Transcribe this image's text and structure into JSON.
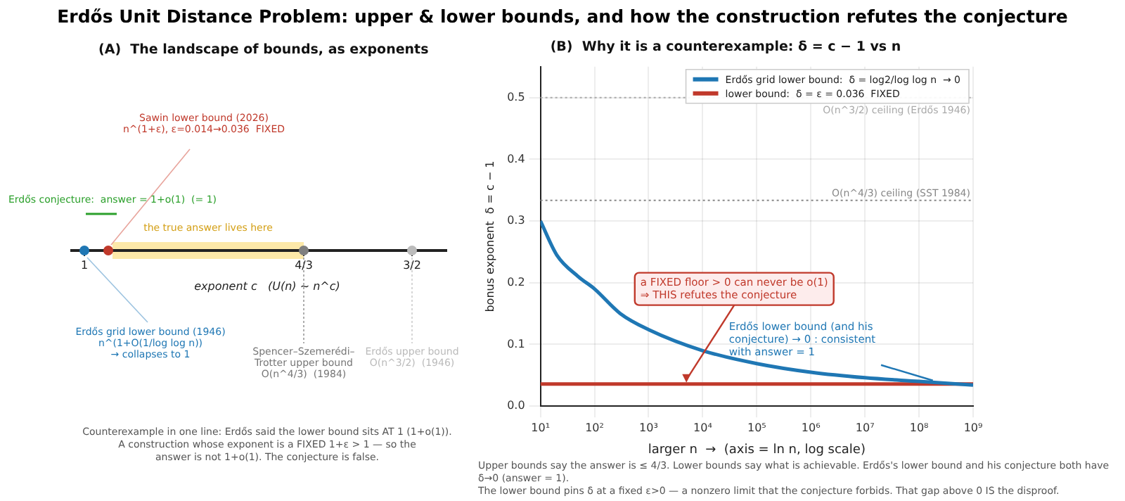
{
  "chart_data": [
    {
      "type": "other",
      "title": "Erdős Unit Distance Problem: upper & lower bounds, and how the construction refutes the conjecture",
      "subtitle": "(A)  The landscape of bounds, as exponents",
      "xlabel": "exponent c   (U(n) ~ n^c)",
      "annotations": [
        "Sawin lower bound (2026)\nn^(1+ε), ε=0.014→0.036  FIXED",
        "Erdős conjecture:  answer = 1+o(1)  (= 1)",
        "Erdős grid lower bound (1946)\nn^(1+O(1/log log n))\n→ collapses to 1",
        "Spencer–Szemerédi–\nTrotter upper bound\nO(n^4/3)  (1984)",
        "Erdős upper bound\nO(n^3/2)  (1946)",
        "the true answer lives here",
        "1",
        "4/3",
        "3/2",
        "Counterexample in one line: Erdős said the lower bound sits AT 1 (1+o(1)).\nA construction whose exponent is a FIXED 1+ε > 1 — so the\nanswer is not 1+o(1). The conjecture is false."
      ]
    },
    {
      "type": "line",
      "title": "(B)  Why it is a counterexample: δ = c − 1 vs n",
      "xlabel": "larger n  →  (axis = ln n, log scale)",
      "ylabel": "bonus exponent  δ = c − 1",
      "log": "x",
      "xlim": [
        10,
        1000000000
      ],
      "xticks": [
        {
          "value": 10,
          "label": "10¹"
        },
        {
          "value": 100,
          "label": "10²"
        },
        {
          "value": 1000,
          "label": "10³"
        },
        {
          "value": 10000,
          "label": "10⁴"
        },
        {
          "value": 100000,
          "label": "10⁵"
        },
        {
          "value": 1000000,
          "label": "10⁶"
        },
        {
          "value": 10000000,
          "label": "10⁷"
        },
        {
          "value": 100000000,
          "label": "10⁸"
        },
        {
          "value": 1000000000,
          "label": "10⁹"
        }
      ],
      "ylim": [
        0,
        0.55
      ],
      "yticks": [
        {
          "value": 0,
          "label": "0.0"
        },
        0.1,
        0.2,
        0.3,
        0.4,
        0.5
      ],
      "grid": true,
      "legend": "top right",
      "series": [
        {
          "name": "Erdős grid lower bound:  δ = log2/log log n  → 0",
          "color": "#1f77b4",
          "x": [
            10,
            20,
            50,
            100,
            300,
            1000,
            10000,
            100000,
            1000000,
            10000000,
            100000000,
            1000000000
          ],
          "values": [
            0.3,
            0.245,
            0.21,
            0.19,
            0.15,
            0.124,
            0.09,
            0.069,
            0.055,
            0.046,
            0.04,
            0.034
          ]
        },
        {
          "name": "lower bound:  δ = ε = 0.036  FIXED",
          "color": "#c0392b",
          "x": [
            10,
            1000000000
          ],
          "values": [
            0.036,
            0.036
          ]
        }
      ],
      "ref_lines": [
        {
          "axis": "y",
          "value": 0.5,
          "label": "O(n^3/2) ceiling (Erdős 1946)",
          "color": "#aaaaaa",
          "line_style": "dotted"
        },
        {
          "axis": "y",
          "value": 0.3333,
          "label": "O(n^4/3) ceiling (SST 1984)",
          "color": "#888888",
          "line_style": "dotted"
        }
      ],
      "annotations": [
        {
          "text": "a FIXED floor > 0 can never be o(1)\n⇒ THIS refutes the conjecture",
          "x": 5000,
          "y": 0.036
        },
        {
          "text": "Erdős lower bound (and his\nconjecture) → 0 : consistent\nwith answer = 1",
          "x": 180000000,
          "y": 0.037
        },
        "Upper bounds say the answer is ≤ 4/3. Lower bounds say what is achievable. Erdős's lower bound and his conjecture both have δ→0 (answer = 1).\nThe lower bound pins δ at a fixed ε>0 — a nonzero limit that the conjecture forbids. That gap above 0 IS the disproof."
      ]
    }
  ]
}
